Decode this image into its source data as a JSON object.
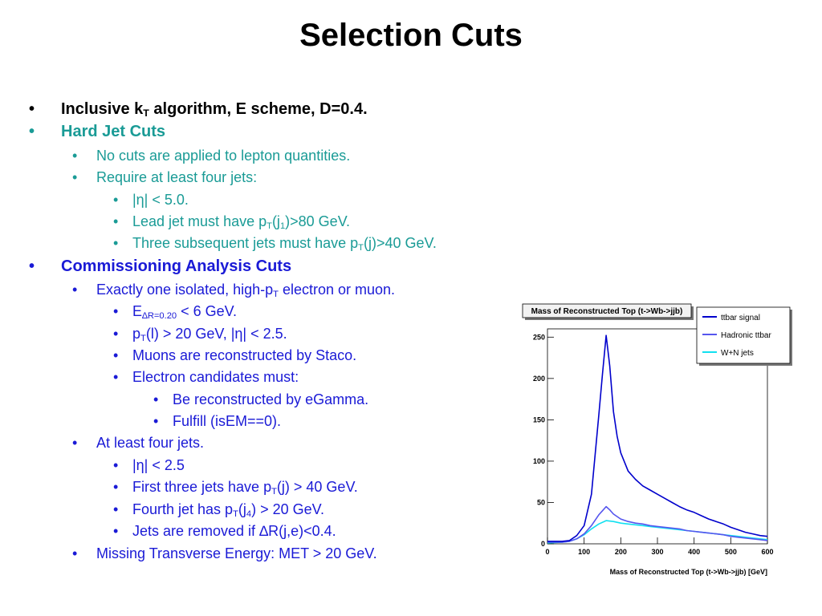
{
  "slide": {
    "title": "Selection Cuts",
    "bullets": {
      "b1": {
        "pre": "Inclusive k",
        "sub": "T",
        "post": " algorithm, E scheme, D=0.4."
      },
      "b2": {
        "text": "Hard Jet Cuts"
      },
      "b2a": {
        "text": "No cuts are applied to lepton quantities."
      },
      "b2b": {
        "text": "Require at least four jets:"
      },
      "b2b1": {
        "text": "|η| < 5.0."
      },
      "b2b2": {
        "pre": "Lead jet must have p",
        "sub1": "T",
        "mid": "(j",
        "sub2": "1",
        "post": ")>80 GeV."
      },
      "b2b3": {
        "pre": "Three subsequent jets must have p",
        "sub": "T",
        "post": "(j)>40 GeV."
      },
      "b3": {
        "text": "Commissioning Analysis Cuts"
      },
      "b3a": {
        "pre": "Exactly one isolated, high-p",
        "sub": "T",
        "post": " electron or muon."
      },
      "b3a1": {
        "pre": "E",
        "sub": "∆R=0.20",
        "post": " < 6 GeV."
      },
      "b3a2": {
        "pre": "p",
        "sub": "T",
        "post": "(l) > 20 GeV, |η| < 2.5."
      },
      "b3a3": {
        "text": "Muons are reconstructed by Staco."
      },
      "b3a4": {
        "text": "Electron candidates must:"
      },
      "b3a4a": {
        "text": "Be reconstructed by eGamma."
      },
      "b3a4b": {
        "text": "Fulfill (isEM==0)."
      },
      "b3b": {
        "text": "At least four jets."
      },
      "b3b1": {
        "text": "|η| < 2.5"
      },
      "b3b2": {
        "pre": "First three jets have p",
        "sub": "T",
        "post": "(j) > 40 GeV."
      },
      "b3b3": {
        "pre": "Fourth jet has p",
        "sub1": "T",
        "mid": "(j",
        "sub2": "4",
        "post": ") > 20 GeV."
      },
      "b3b4": {
        "text": "Jets are removed if ∆R(j,e)<0.4."
      },
      "b3c": {
        "text": "Missing Transverse Energy: MET > 20 GeV."
      }
    }
  },
  "colors": {
    "teal": "#1a9b96",
    "blue": "#1a1ad6",
    "signal": "#0000cc",
    "hadronic": "#5555ee",
    "wjets": "#11e0f0"
  },
  "chart_data": {
    "type": "line",
    "title": "Mass of Reconstructed Top (t->Wb->jjb)",
    "xlabel": "Mass of Reconstructed Top (t->Wb->jjb) [GeV]",
    "ylabel": "",
    "xlim": [
      0,
      600
    ],
    "ylim": [
      0,
      260
    ],
    "xticks": [
      "0",
      "100",
      "200",
      "300",
      "400",
      "500",
      "600"
    ],
    "yticks": [
      "0",
      "50",
      "100",
      "150",
      "200",
      "250"
    ],
    "legend_position": "top-right",
    "grid": false,
    "series": [
      {
        "name": "ttbar signal",
        "color": "#0000cc",
        "x": [
          0,
          40,
          60,
          80,
          100,
          120,
          140,
          150,
          160,
          170,
          180,
          190,
          200,
          220,
          240,
          260,
          280,
          300,
          320,
          340,
          360,
          380,
          400,
          420,
          440,
          460,
          480,
          500,
          520,
          540,
          560,
          580,
          600
        ],
        "y": [
          3,
          3,
          4,
          10,
          22,
          60,
          155,
          205,
          252,
          215,
          160,
          130,
          110,
          88,
          78,
          70,
          65,
          60,
          55,
          50,
          45,
          41,
          38,
          34,
          30,
          27,
          24,
          20,
          17,
          14,
          12,
          10,
          9
        ]
      },
      {
        "name": "Hadronic ttbar",
        "color": "#5555ee",
        "x": [
          0,
          40,
          60,
          80,
          100,
          120,
          140,
          150,
          160,
          170,
          180,
          200,
          220,
          240,
          260,
          280,
          300,
          320,
          340,
          360,
          380,
          400,
          420,
          440,
          460,
          480,
          500,
          520,
          540,
          560,
          580,
          600
        ],
        "y": [
          2,
          2,
          3,
          6,
          12,
          22,
          35,
          40,
          45,
          41,
          36,
          30,
          27,
          25,
          24,
          22,
          21,
          20,
          19,
          18,
          16,
          15,
          14,
          13,
          12,
          11,
          9,
          8,
          7,
          6,
          5,
          4
        ]
      },
      {
        "name": "W+N jets",
        "color": "#11e0f0",
        "x": [
          0,
          40,
          60,
          80,
          100,
          120,
          140,
          160,
          180,
          200,
          220,
          240,
          260,
          280,
          300,
          320,
          340,
          360,
          380,
          400,
          420,
          440,
          460,
          480,
          500,
          520,
          540,
          560,
          580,
          600
        ],
        "y": [
          1,
          2,
          3,
          6,
          11,
          18,
          24,
          28,
          27,
          25,
          24,
          23,
          22,
          21,
          20,
          19,
          18,
          17,
          16,
          15,
          14,
          13,
          12,
          11,
          10,
          9,
          8,
          7,
          6,
          5
        ]
      }
    ]
  }
}
